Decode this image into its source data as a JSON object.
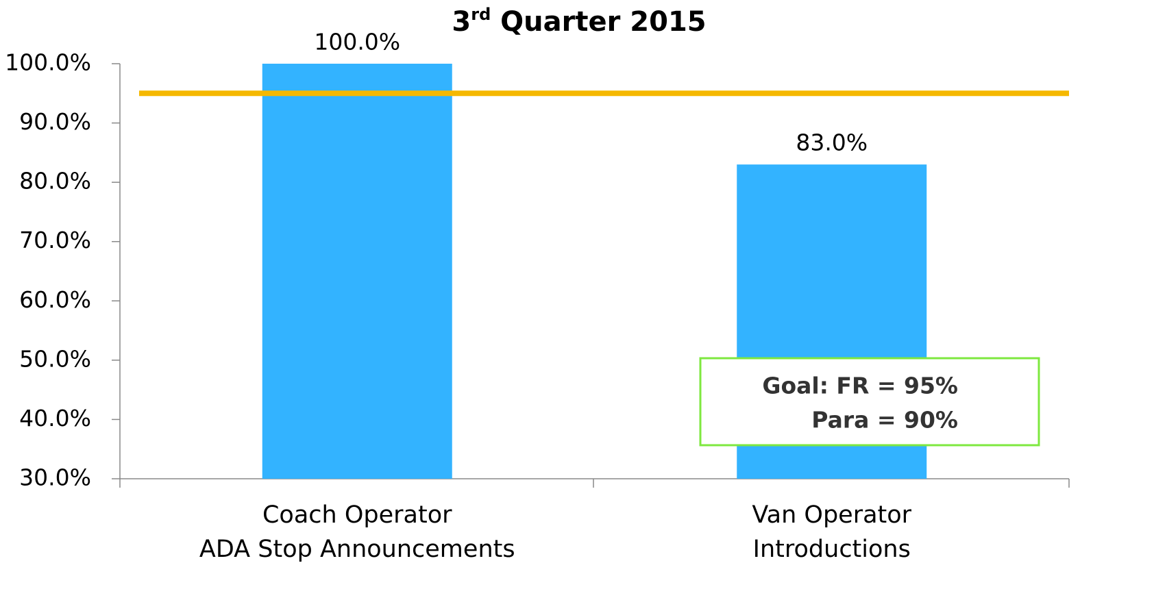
{
  "chart_data": {
    "type": "bar",
    "title": "3rd Quarter 2015",
    "categories": [
      "Coach Operator\nADA Stop Announcements",
      "Van Operator\nIntroductions"
    ],
    "values": [
      100,
      83
    ],
    "value_labels": [
      "100.0%",
      "83.0%"
    ],
    "color": "#33b3ff",
    "ylim": [
      30,
      100
    ],
    "yticks": [
      {
        "value": 30,
        "label": "30.0%"
      },
      {
        "value": 40,
        "label": "40.0%"
      },
      {
        "value": 50,
        "label": "50.0%"
      },
      {
        "value": 60,
        "label": "60.0%"
      },
      {
        "value": 70,
        "label": "70.0%"
      },
      {
        "value": 80,
        "label": "80.0%"
      },
      {
        "value": 90,
        "label": "90.0%"
      },
      {
        "value": 100,
        "label": "100.0%"
      }
    ],
    "grid": false,
    "goal_line": {
      "value": 95,
      "color": "#f5b800"
    },
    "annotation": [
      "Goal:  FR = 95%",
      "Para = 90%"
    ]
  }
}
